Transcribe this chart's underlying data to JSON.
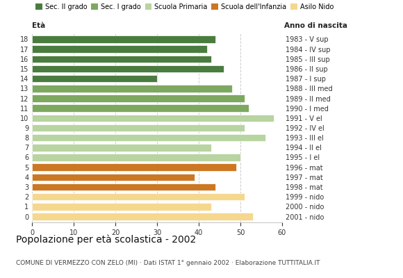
{
  "ages": [
    18,
    17,
    16,
    15,
    14,
    13,
    12,
    11,
    10,
    9,
    8,
    7,
    6,
    5,
    4,
    3,
    2,
    1,
    0
  ],
  "values": [
    44,
    42,
    43,
    46,
    30,
    48,
    51,
    52,
    58,
    51,
    56,
    43,
    50,
    49,
    39,
    44,
    51,
    43,
    53
  ],
  "right_labels": [
    "1983 - V sup",
    "1984 - IV sup",
    "1985 - III sup",
    "1986 - II sup",
    "1987 - I sup",
    "1988 - III med",
    "1989 - II med",
    "1990 - I med",
    "1991 - V el",
    "1992 - IV el",
    "1993 - III el",
    "1994 - II el",
    "1995 - I el",
    "1996 - mat",
    "1997 - mat",
    "1998 - mat",
    "1999 - nido",
    "2000 - nido",
    "2001 - nido"
  ],
  "colors": [
    "#4a7c3f",
    "#4a7c3f",
    "#4a7c3f",
    "#4a7c3f",
    "#4a7c3f",
    "#7da860",
    "#7da860",
    "#7da860",
    "#b8d4a0",
    "#b8d4a0",
    "#b8d4a0",
    "#b8d4a0",
    "#b8d4a0",
    "#cc7722",
    "#cc7722",
    "#cc7722",
    "#f5d78e",
    "#f5d78e",
    "#f5d78e"
  ],
  "legend_labels": [
    "Sec. II grado",
    "Sec. I grado",
    "Scuola Primaria",
    "Scuola dell'Infanzia",
    "Asilo Nido"
  ],
  "legend_colors": [
    "#4a7c3f",
    "#7da860",
    "#b8d4a0",
    "#cc7722",
    "#f5d78e"
  ],
  "title": "Popolazione per età scolastica - 2002",
  "subtitle": "COMUNE DI VERMEZZO CON ZELO (MI) · Dati ISTAT 1° gennaio 2002 · Elaborazione TUTTITALIA.IT",
  "xlabel_eta": "Età",
  "xlabel_anno": "Anno di nascita",
  "xlim": [
    0,
    60
  ],
  "xticks": [
    0,
    10,
    20,
    30,
    40,
    50,
    60
  ],
  "bar_height": 0.75,
  "background_color": "#ffffff",
  "grid_color": "#cccccc",
  "title_fontsize": 10,
  "subtitle_fontsize": 6.5,
  "tick_fontsize": 7,
  "label_fontsize": 7.5,
  "legend_fontsize": 7
}
